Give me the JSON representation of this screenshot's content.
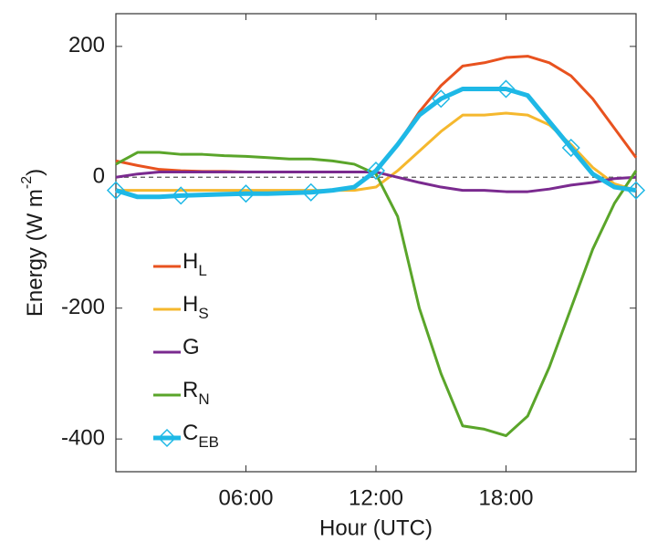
{
  "chart_data": {
    "type": "line",
    "xlabel": "Hour (UTC)",
    "ylabel": {
      "text": "Energy (W m",
      "sup": "-2",
      "end": ")"
    },
    "x": [
      0,
      1,
      2,
      3,
      4,
      5,
      6,
      7,
      8,
      9,
      10,
      11,
      12,
      13,
      14,
      15,
      16,
      17,
      18,
      19,
      20,
      21,
      22,
      23,
      24
    ],
    "xlim": [
      0,
      24
    ],
    "xticks": [
      {
        "value": 6,
        "label": "06:00"
      },
      {
        "value": 12,
        "label": "12:00"
      },
      {
        "value": 18,
        "label": "18:00"
      }
    ],
    "ylim": [
      -450,
      250
    ],
    "yticks": [
      200,
      0,
      -200,
      -400
    ],
    "zero_line": true,
    "legend": "lower left",
    "series": [
      {
        "name": "H",
        "sub": "L",
        "color": "#e8521f",
        "values": [
          25,
          18,
          12,
          10,
          9,
          9,
          8,
          8,
          8,
          8,
          8,
          8,
          8,
          50,
          100,
          140,
          170,
          175,
          183,
          185,
          175,
          155,
          120,
          75,
          30
        ]
      },
      {
        "name": "H",
        "sub": "S",
        "color": "#f5b82e",
        "values": [
          -20,
          -20,
          -20,
          -20,
          -20,
          -20,
          -20,
          -20,
          -20,
          -20,
          -20,
          -20,
          -15,
          10,
          40,
          70,
          95,
          95,
          98,
          95,
          80,
          50,
          15,
          -10,
          -20
        ]
      },
      {
        "name": "G",
        "sub": "",
        "color": "#7a2a8f",
        "values": [
          0,
          5,
          8,
          8,
          8,
          8,
          8,
          8,
          8,
          8,
          8,
          8,
          8,
          0,
          -8,
          -15,
          -20,
          -20,
          -22,
          -22,
          -18,
          -12,
          -8,
          -2,
          0
        ]
      },
      {
        "name": "R",
        "sub": "N",
        "color": "#5aa52a",
        "values": [
          20,
          38,
          38,
          35,
          35,
          33,
          32,
          30,
          28,
          28,
          25,
          20,
          5,
          -60,
          -200,
          -300,
          -380,
          -385,
          -395,
          -365,
          -290,
          -200,
          -110,
          -40,
          10
        ]
      },
      {
        "name": "C",
        "sub": "EB",
        "color": "#1eb8e6",
        "width": 5,
        "marker_every": 3,
        "values": [
          -20,
          -30,
          -30,
          -28,
          -27,
          -26,
          -25,
          -25,
          -24,
          -23,
          -20,
          -15,
          10,
          50,
          95,
          120,
          135,
          135,
          135,
          125,
          85,
          45,
          5,
          -15,
          -20
        ]
      }
    ]
  }
}
